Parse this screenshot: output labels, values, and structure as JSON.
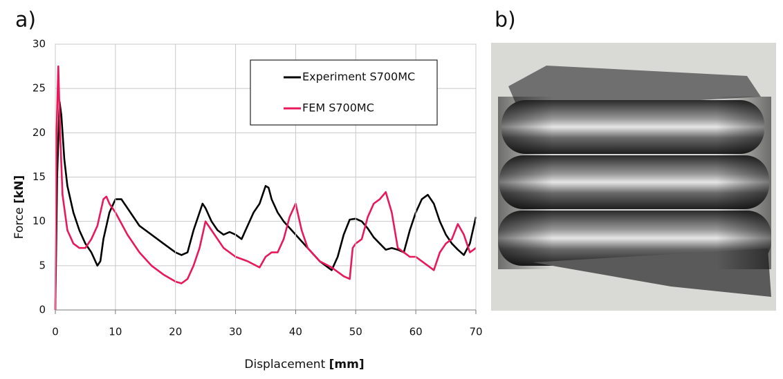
{
  "panel_labels": [
    "a)",
    "b)"
  ],
  "chart_data": {
    "type": "line",
    "x_label": {
      "text": "Displacement",
      "unit": "[mm]"
    },
    "y_label": {
      "text": "Force",
      "unit": "[kN]"
    },
    "xlim": [
      0,
      70
    ],
    "xticks": [
      0,
      10,
      20,
      30,
      40,
      50,
      60,
      70
    ],
    "ylim": [
      0,
      30
    ],
    "yticks": [
      0,
      5,
      10,
      15,
      20,
      25,
      30
    ],
    "grid": true,
    "legend": "upper right",
    "series": [
      {
        "name": "Experiment S700MC",
        "color": "#000000",
        "x": [
          0,
          0.3,
          0.7,
          1,
          1.5,
          2,
          3,
          4,
          5,
          6,
          7,
          7.5,
          8,
          9,
          10,
          11,
          12,
          14,
          16,
          18,
          20,
          21,
          22,
          23,
          24,
          24.5,
          25,
          26,
          27,
          28,
          29,
          30,
          31,
          32,
          33,
          34,
          35,
          35.5,
          36,
          37,
          38,
          40,
          42,
          44,
          46,
          47,
          48,
          49,
          50,
          51,
          52,
          53,
          54,
          55,
          56,
          57,
          58,
          59,
          60,
          61,
          62,
          63,
          64,
          65,
          66,
          67,
          68,
          69,
          70
        ],
        "values": [
          0,
          15,
          23.5,
          22,
          17,
          14,
          11,
          9,
          7.5,
          6.5,
          5,
          5.5,
          8,
          11,
          12.5,
          12.5,
          11.5,
          9.5,
          8.5,
          7.5,
          6.5,
          6.2,
          6.5,
          9,
          11,
          12,
          11.5,
          10,
          9,
          8.5,
          8.8,
          8.5,
          8,
          9.5,
          11,
          12,
          14,
          13.8,
          12.5,
          11,
          10,
          8.5,
          7,
          5.5,
          4.5,
          6,
          8.5,
          10.2,
          10.3,
          10,
          9.2,
          8.2,
          7.5,
          6.8,
          7,
          6.8,
          6.5,
          9,
          11,
          12.5,
          13,
          12,
          10,
          8.5,
          7.5,
          6.8,
          6.2,
          7.5,
          10.5
        ]
      },
      {
        "name": "FEM S700MC",
        "color": "#e8185a",
        "x": [
          0,
          0.2,
          0.5,
          0.8,
          1.2,
          2,
          3,
          4,
          5,
          6,
          7,
          8,
          8.5,
          9,
          9.5,
          10,
          12,
          14,
          16,
          18,
          20,
          21,
          22,
          23,
          24,
          25,
          26,
          27,
          28,
          30,
          32,
          34,
          35,
          36,
          37,
          38,
          39,
          40,
          41,
          42,
          44,
          46,
          48,
          49,
          49.5,
          50,
          51,
          52,
          53,
          54,
          55,
          56,
          57,
          58,
          59,
          60,
          61,
          62,
          63,
          64,
          65,
          66,
          67,
          68,
          69,
          70
        ],
        "values": [
          0,
          20,
          27.5,
          20,
          13,
          9,
          7.5,
          7,
          7,
          8,
          9.5,
          12.5,
          12.8,
          12,
          11.5,
          11,
          8.5,
          6.5,
          5,
          4,
          3.2,
          3,
          3.5,
          5,
          7,
          10,
          9,
          8,
          7,
          6,
          5.5,
          4.8,
          6,
          6.5,
          6.5,
          8,
          10.5,
          12,
          9,
          7,
          5.5,
          4.8,
          3.8,
          3.5,
          7,
          7.5,
          8,
          10.5,
          12,
          12.5,
          13.3,
          11,
          7,
          6.5,
          6,
          6,
          5.5,
          5,
          4.5,
          6.5,
          7.5,
          8,
          9.7,
          8.5,
          6.5,
          7
        ]
      }
    ]
  }
}
